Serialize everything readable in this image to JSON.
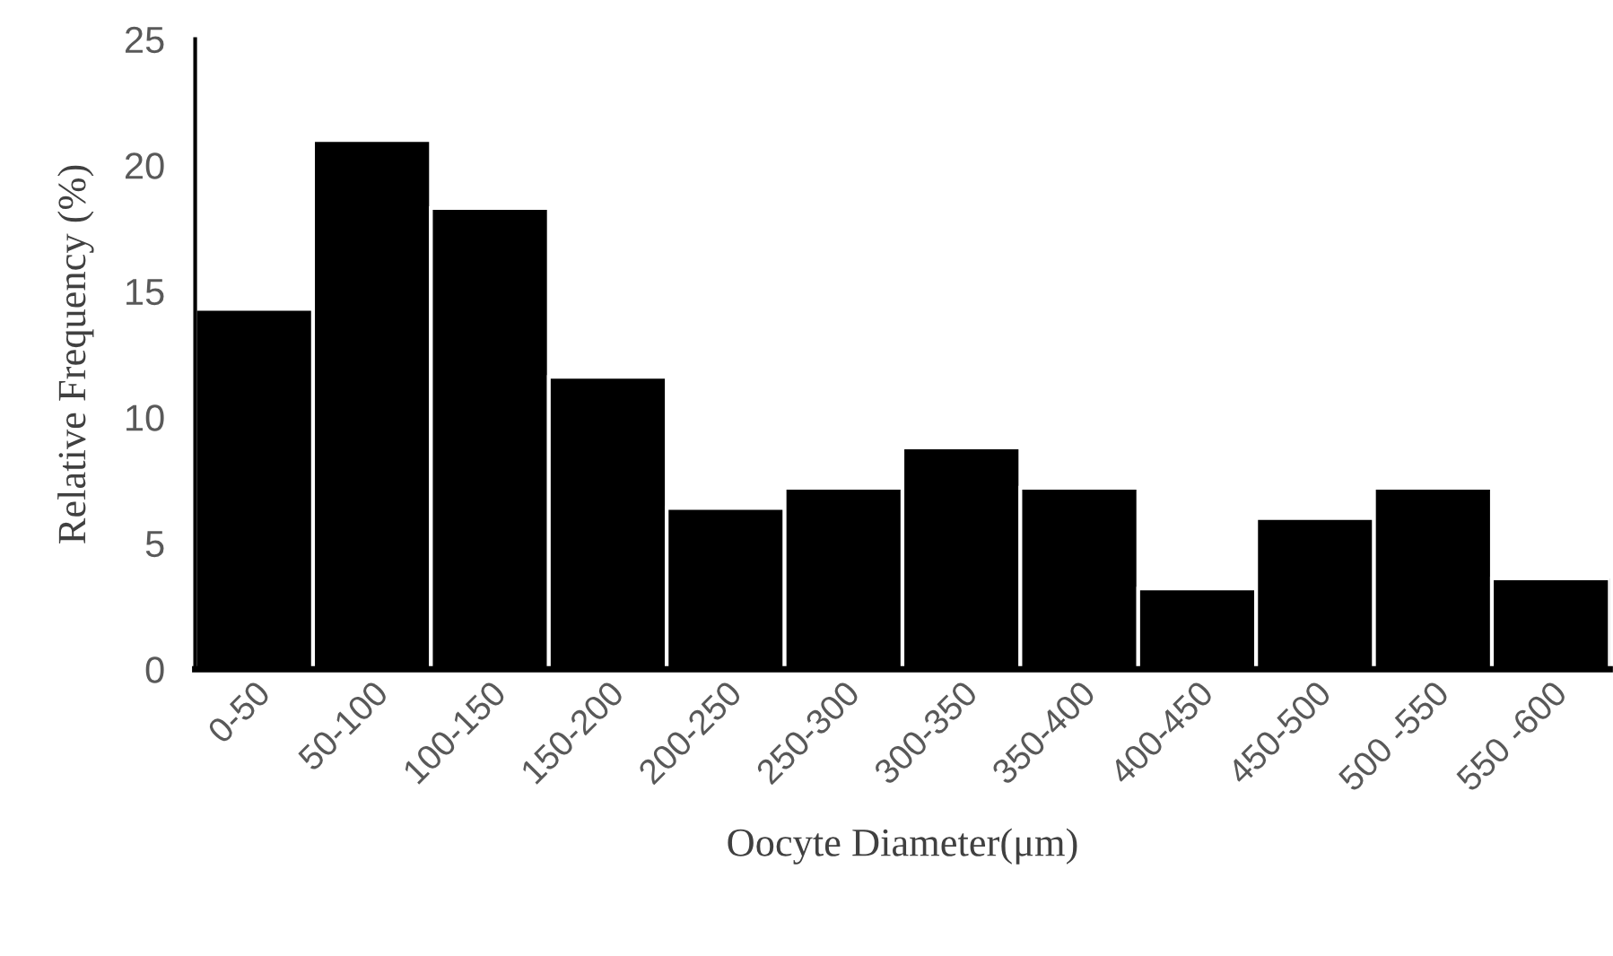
{
  "chart_data": {
    "type": "bar",
    "xlabel": "Oocyte Diameter(μm)",
    "ylabel": "Relative Frequency (%)",
    "categories": [
      "0-50",
      "50-100",
      "100-150",
      "150-200",
      "200-250",
      "250-300",
      "300-350",
      "350-400",
      "400-450",
      "450-500",
      "500 -550",
      "550 -600"
    ],
    "values": [
      14.3,
      21.0,
      18.3,
      11.6,
      6.4,
      7.2,
      8.8,
      7.2,
      3.2,
      6.0,
      7.2,
      3.6
    ],
    "color": "#000000",
    "ylim": [
      0,
      25
    ],
    "yticks": [
      0,
      5,
      10,
      15,
      20,
      25
    ],
    "grid": false
  }
}
